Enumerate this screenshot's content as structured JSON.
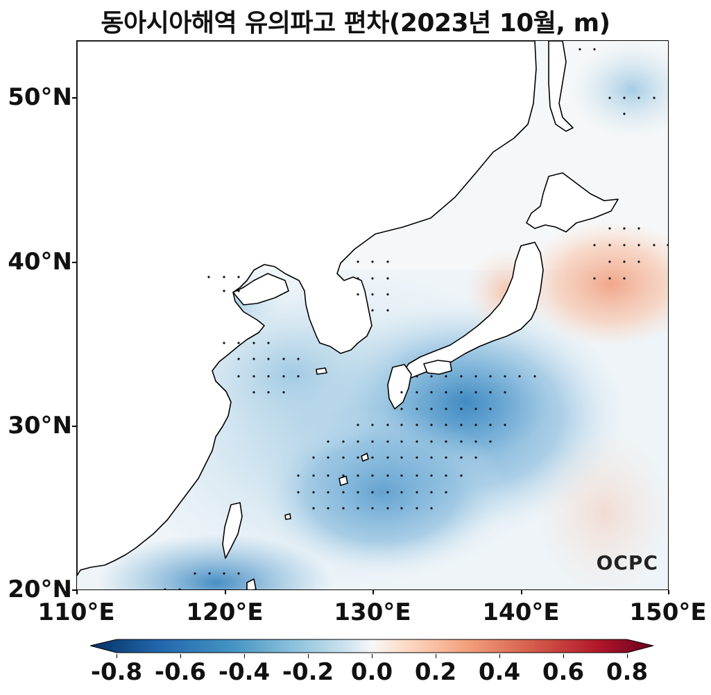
{
  "title": "동아시아해역 유의파고 편차(2023년 10월, m)",
  "logo_text": "OCPC",
  "map": {
    "lon_range": [
      110,
      150
    ],
    "lat_range": [
      20,
      53.5
    ],
    "x_ticks": [
      "110°E",
      "120°E",
      "130°E",
      "140°E",
      "150°E"
    ],
    "y_ticks": [
      "20°N",
      "30°N",
      "40°N",
      "50°N"
    ]
  },
  "colorbar": {
    "labels": [
      "-0.8",
      "-0.6",
      "-0.4",
      "-0.2",
      "0.0",
      "0.2",
      "0.4",
      "0.6",
      "0.8"
    ],
    "range": [
      -0.8,
      0.8
    ],
    "colormap": "RdBu_r",
    "colors": {
      "negative_strong": "#053061",
      "negative_mid": "#4393c3",
      "negative_light": "#d1e5f0",
      "neutral": "#f7f7f7",
      "positive_light": "#fddbc7",
      "positive_mid": "#d6604d",
      "positive_strong": "#67001f"
    }
  }
}
